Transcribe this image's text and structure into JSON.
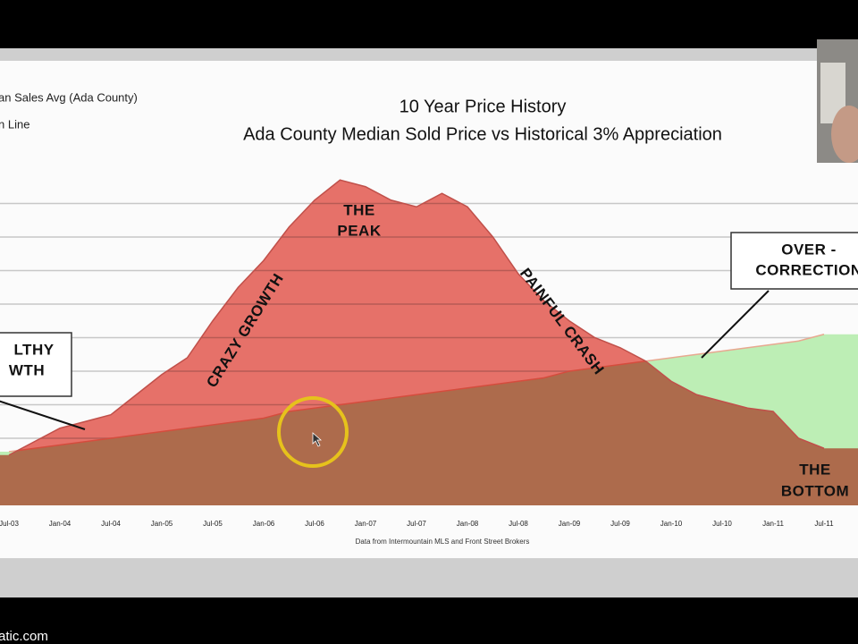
{
  "chart_data": {
    "type": "area",
    "title": "10 Year Price History",
    "subtitle": "Ada County Median Sold Price vs Historical 3% Appreciation",
    "source": "Data from Intermountain MLS and Front Street Brokers",
    "categories": [
      "Jul-03",
      null,
      "Jan-04",
      null,
      "Jul-04",
      null,
      "Jan-05",
      null,
      "Jul-05",
      null,
      "Jan-06",
      null,
      "Jul-06",
      null,
      "Jan-07",
      null,
      "Jul-07",
      null,
      "Jan-08",
      null,
      "Jul-08",
      null,
      "Jan-09",
      null,
      "Jul-09",
      null,
      "Jan-10",
      null,
      "Jul-10",
      null,
      "Jan-11",
      null,
      "Jul-11"
    ],
    "series": [
      {
        "name": "an Sales Avg (Ada County)",
        "color": "#ea736b",
        "values": [
          15,
          19,
          23,
          25,
          27,
          33,
          39,
          44,
          55,
          65,
          73,
          83,
          91,
          97,
          95,
          91,
          89,
          93,
          89,
          80,
          69,
          61,
          55,
          50,
          47,
          43,
          37,
          33,
          31,
          29,
          28,
          20,
          17
        ]
      },
      {
        "name": "n Line",
        "color": "#bdeeb5",
        "values": [
          16,
          17,
          18,
          19,
          20,
          21,
          22,
          23,
          24,
          25,
          26,
          28,
          29,
          30,
          31,
          32,
          33,
          34,
          35,
          36,
          37,
          38,
          40,
          41,
          42,
          43,
          44,
          45,
          46,
          47,
          48,
          49,
          51
        ]
      }
    ],
    "ylim": [
      0,
      100
    ],
    "yticks": [
      10,
      20,
      30,
      40,
      50,
      60,
      70,
      80,
      90
    ],
    "grid": true,
    "annotations": {
      "healthy": [
        "LTHY",
        "WTH"
      ],
      "crazy": "CRAZY GROWTH",
      "peak": [
        "THE",
        "PEAK"
      ],
      "crash": "PAINFUL CRASH",
      "over": [
        "OVER -",
        "CORRECTION"
      ],
      "bottom": [
        "THE",
        "BOTTOM"
      ]
    },
    "site": "atic.com"
  }
}
